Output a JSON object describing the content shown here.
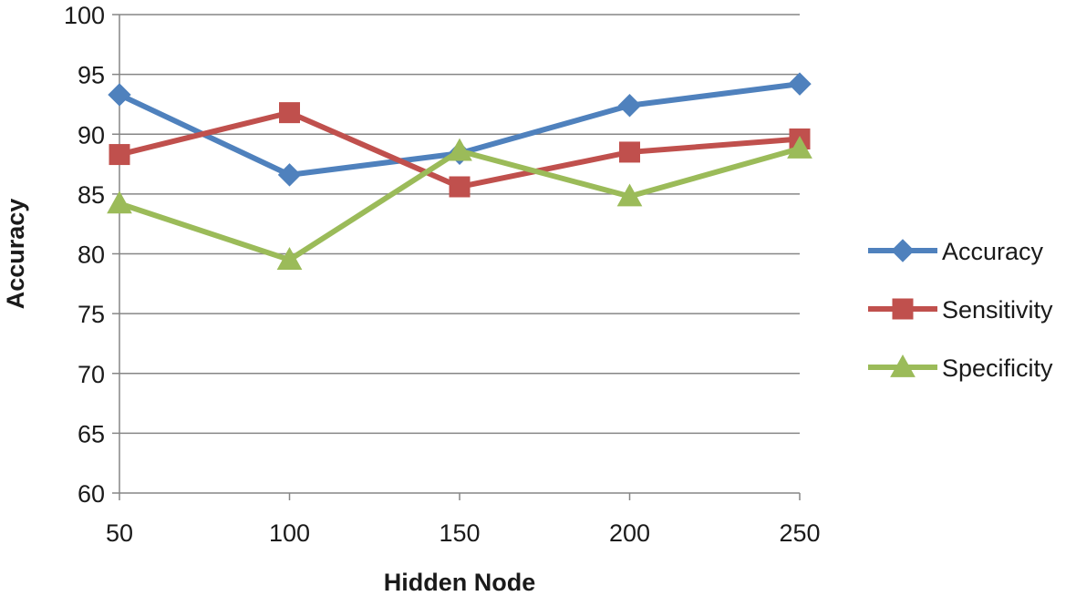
{
  "chart_data": {
    "type": "line",
    "title": "",
    "xlabel": "Hidden Node",
    "ylabel": "Accuracy",
    "categories": [
      "50",
      "100",
      "150",
      "200",
      "250"
    ],
    "ylim": [
      60,
      100
    ],
    "yticks": [
      60,
      65,
      70,
      75,
      80,
      85,
      90,
      95,
      100
    ],
    "grid": true,
    "legend_position": "right",
    "series": [
      {
        "name": "Accuracy",
        "color": "#4F81BD",
        "marker": "diamond",
        "values": [
          93.3,
          86.6,
          88.4,
          92.4,
          94.2
        ]
      },
      {
        "name": "Sensitivity",
        "color": "#C0504D",
        "marker": "square",
        "values": [
          88.3,
          91.8,
          85.6,
          88.5,
          89.6
        ]
      },
      {
        "name": "Specificity",
        "color": "#9BBB59",
        "marker": "triangle",
        "values": [
          84.2,
          79.5,
          88.6,
          84.8,
          88.8
        ]
      }
    ]
  }
}
